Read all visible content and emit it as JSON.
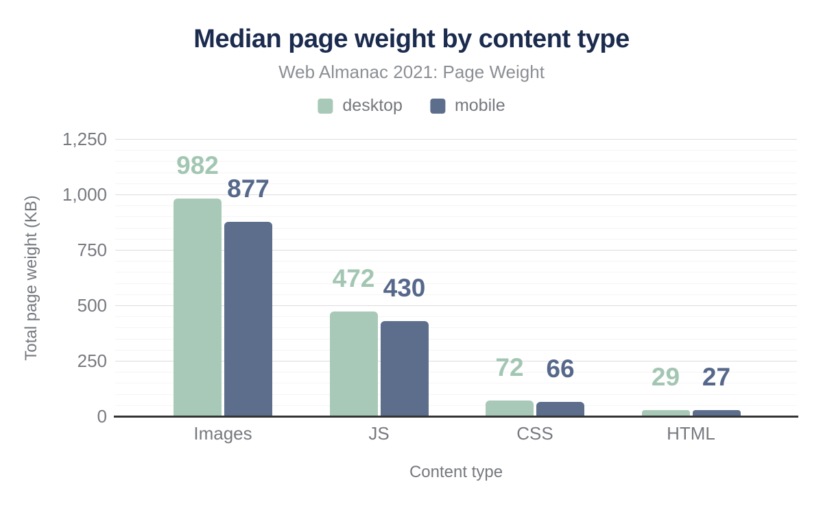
{
  "chart_data": {
    "type": "bar",
    "title": "Median page weight by content type",
    "subtitle": "Web Almanac 2021: Page Weight",
    "xlabel": "Content type",
    "ylabel": "Total page weight (KB)",
    "categories": [
      "Images",
      "JS",
      "CSS",
      "HTML"
    ],
    "series": [
      {
        "name": "desktop",
        "color": "#a8c9b7",
        "label_color": "#a3c6b3",
        "values": [
          982,
          472,
          72,
          29
        ]
      },
      {
        "name": "mobile",
        "color": "#5c6e8c",
        "label_color": "#56688a",
        "values": [
          877,
          430,
          66,
          27
        ]
      }
    ],
    "ylim": [
      0,
      1250
    ],
    "ytick_step": 250,
    "yminor_step": 50,
    "ytick_labels": [
      "0",
      "250",
      "500",
      "750",
      "1,000",
      "1,250"
    ],
    "grid": "horizontal",
    "legend_position": "top"
  },
  "colors": {
    "title": "#1b2b4e",
    "subtitle": "#8b8e94",
    "axis_text": "#76797f",
    "grid_major": "#dcdce0",
    "grid_minor": "#f4f4f6",
    "baseline": "#333333",
    "background": "#ffffff"
  }
}
